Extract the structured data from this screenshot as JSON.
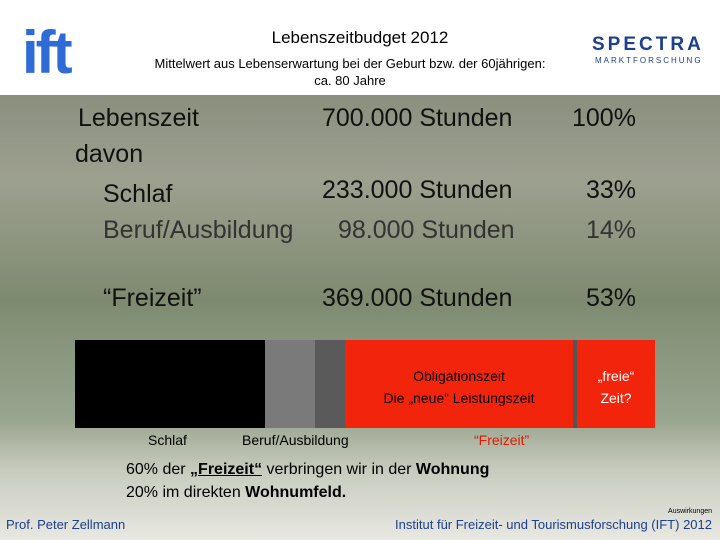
{
  "header": {
    "logo": "ift",
    "title": "Lebenszeitbudget 2012",
    "subtitle_lines": [
      "Mittelwert aus Lebenserwartung bei der Geburt bzw. der 60jährigen:",
      "ca. 80 Jahre"
    ],
    "brand": "SPECTRA",
    "brand_sub": "MARKTFORSCHUNG"
  },
  "rows": [
    {
      "label": "Lebenszeit",
      "hours": "700.000 Stunden",
      "share": "100%"
    },
    {
      "label": "Schlaf",
      "hours": "233.000 Stunden",
      "share": "33%"
    },
    {
      "label": "Beruf/Ausbildung",
      "hours": "98.000 Stunden",
      "share": "14%"
    },
    {
      "label": "“Freizeit”",
      "hours": "369.000 Stunden",
      "share": "53%"
    }
  ],
  "davon": "davon",
  "bar": {
    "obligation": [
      "Obligationszeit",
      "Die „neue“ Leistungszeit"
    ],
    "free": [
      "„freie“",
      "Zeit?"
    ],
    "labels": [
      "Schlaf",
      "Beruf/Ausbildung",
      "“Freizeit”"
    ]
  },
  "notes": [
    [
      "60% der ",
      "„Freizeit“",
      " verbringen wir in der ",
      "Wohnung"
    ],
    [
      "20% im direkten ",
      "Wohnumfeld."
    ]
  ],
  "footer": {
    "author": "Prof. Peter Zellmann",
    "tag": "Auswirkungen",
    "institute": "Institut für Freizeit- und Tourismusforschung (IFT) 2012"
  }
}
